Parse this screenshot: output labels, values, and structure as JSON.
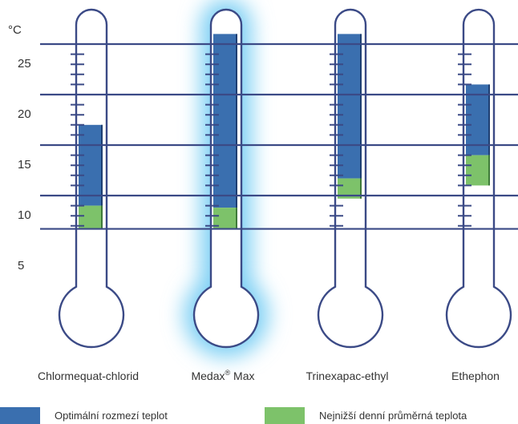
{
  "chart_data": {
    "type": "bar",
    "unit_label": "°C",
    "y_ticks": [
      5,
      10,
      15,
      20,
      25
    ],
    "categories": [
      {
        "base": "Chlormequat-chlorid",
        "sup": "",
        "suffix": ""
      },
      {
        "base": "Medax",
        "sup": "®",
        "suffix": " Max"
      },
      {
        "base": "Trinexapac-ethyl",
        "sup": "",
        "suffix": ""
      },
      {
        "base": "Ethephon",
        "sup": "",
        "suffix": ""
      }
    ],
    "series": [
      {
        "name": "Optimální rozmezí teplot",
        "color": "#3a6faf",
        "ranges": [
          [
            9,
            17
          ],
          [
            8.8,
            26
          ],
          [
            11.7,
            26
          ],
          [
            14,
            21
          ]
        ]
      },
      {
        "name": "Nejnižší denní průměrná teplota",
        "color": "#7dc26a",
        "ranges": [
          [
            6.7,
            9
          ],
          [
            6.7,
            8.8
          ],
          [
            9.7,
            11.7
          ],
          [
            11,
            14
          ]
        ]
      }
    ],
    "ylim": [
      6.7,
      26
    ],
    "highlighted_category": 1,
    "outline_color": "#3b4a86"
  }
}
